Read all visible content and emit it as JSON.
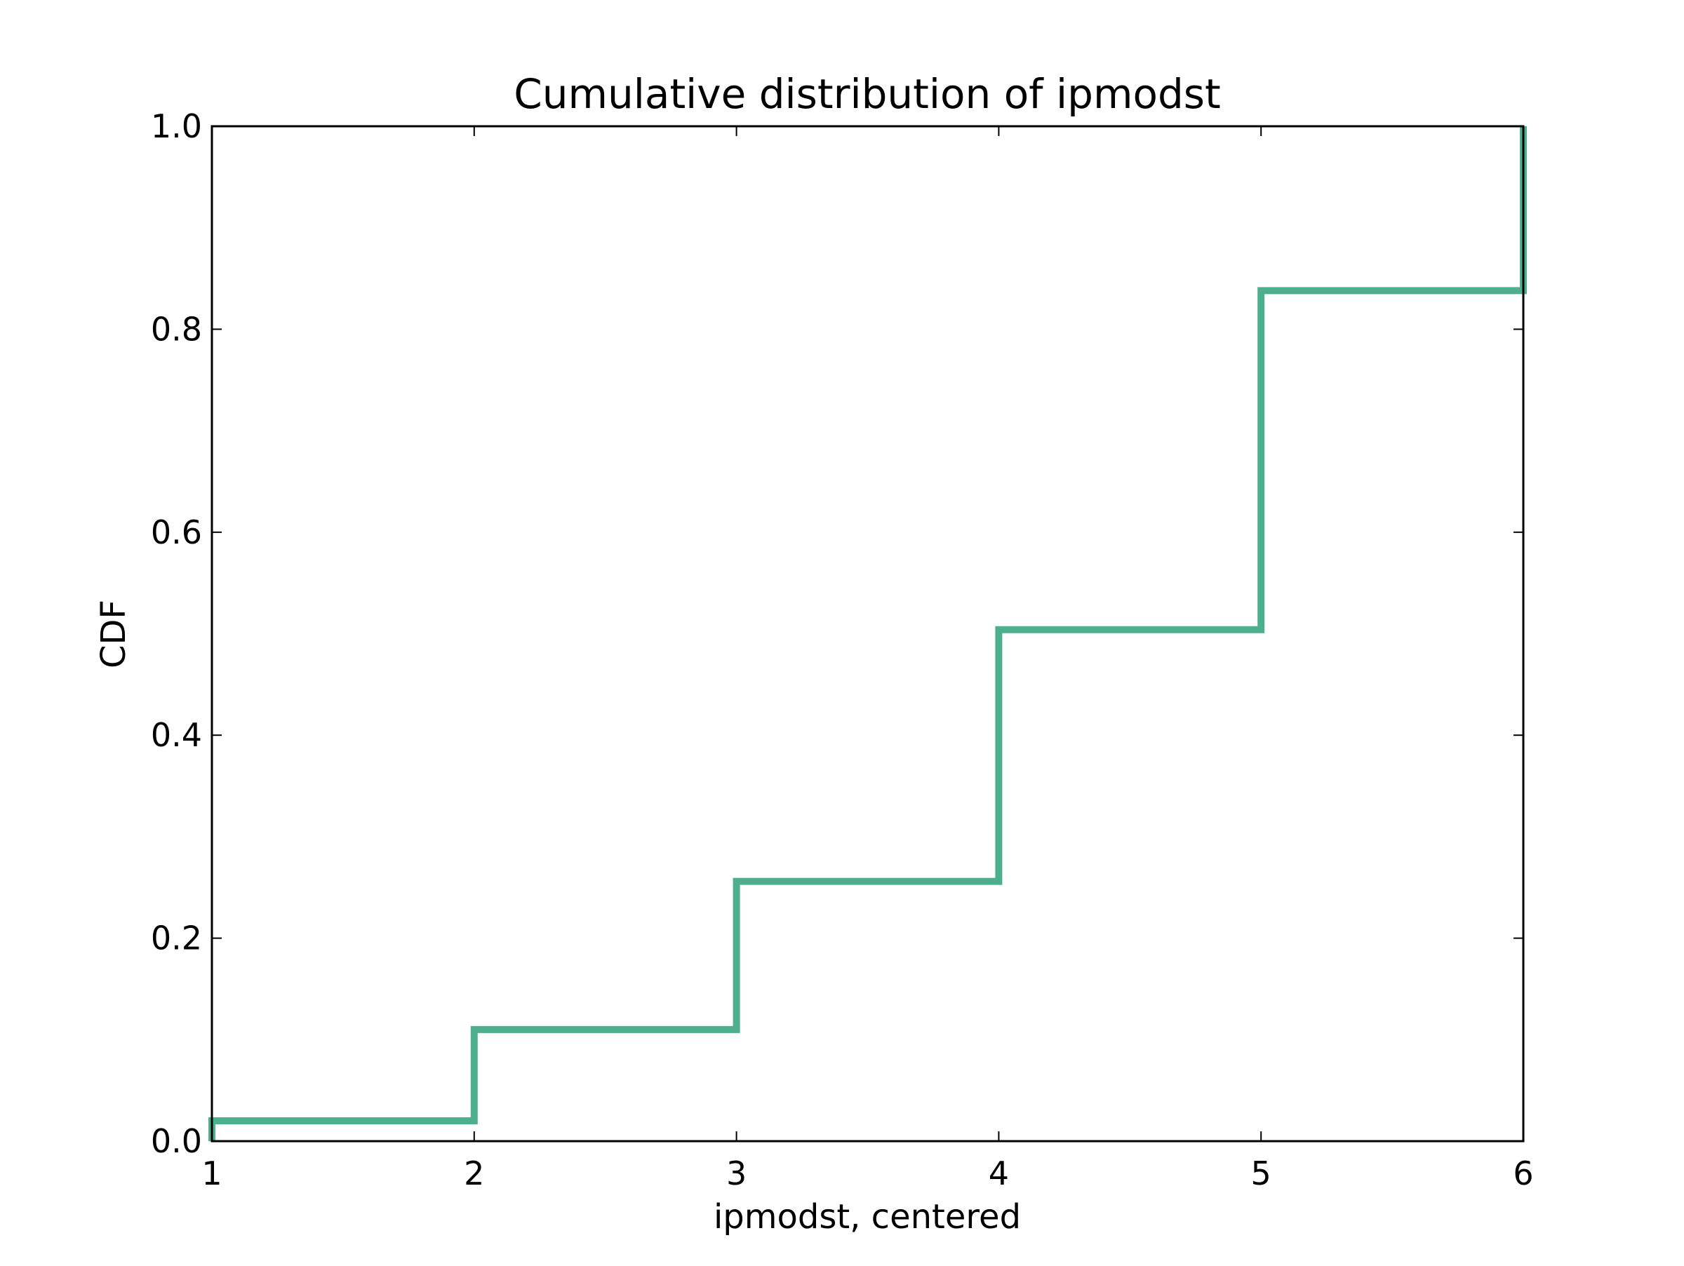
{
  "chart_data": {
    "type": "line",
    "drawstyle": "steps-post",
    "title": "Cumulative distribution of ipmodst",
    "xlabel": "ipmodst, centered",
    "ylabel": "CDF",
    "xlim": [
      1,
      6
    ],
    "ylim": [
      0.0,
      1.0
    ],
    "xticks": [
      "1",
      "2",
      "3",
      "4",
      "5",
      "6"
    ],
    "yticks": [
      "0.0",
      "0.2",
      "0.4",
      "0.6",
      "0.8",
      "1.0"
    ],
    "grid": false,
    "series": [
      {
        "color": "#4daf8e",
        "x": [
          1,
          2,
          3,
          4,
          5,
          6
        ],
        "y": [
          0.02,
          0.11,
          0.256,
          0.504,
          0.838,
          1.0
        ]
      }
    ]
  }
}
